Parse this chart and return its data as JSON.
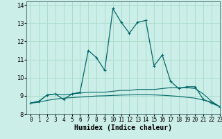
{
  "title": "",
  "xlabel": "Humidex (Indice chaleur)",
  "ylabel": "",
  "background_color": "#cceee8",
  "grid_color": "#aaddcc",
  "line_color": "#006666",
  "xlim": [
    -0.5,
    23
  ],
  "ylim": [
    8,
    14.2
  ],
  "xticks": [
    0,
    1,
    2,
    3,
    4,
    5,
    6,
    7,
    8,
    9,
    10,
    11,
    12,
    13,
    14,
    15,
    16,
    17,
    18,
    19,
    20,
    21,
    22,
    23
  ],
  "yticks": [
    8,
    9,
    10,
    11,
    12,
    13,
    14
  ],
  "series_main": {
    "x": [
      0,
      1,
      2,
      3,
      4,
      5,
      6,
      7,
      8,
      9,
      10,
      11,
      12,
      13,
      14,
      15,
      16,
      17,
      18,
      19,
      20,
      21,
      22,
      23
    ],
    "y": [
      8.6,
      8.7,
      9.05,
      9.1,
      8.8,
      9.1,
      9.2,
      11.5,
      11.1,
      10.4,
      13.8,
      13.05,
      12.45,
      13.05,
      13.15,
      10.65,
      11.25,
      9.8,
      9.4,
      9.5,
      9.5,
      8.8,
      8.6,
      8.4
    ]
  },
  "series_flat1": {
    "x": [
      0,
      1,
      2,
      3,
      4,
      5,
      6,
      7,
      8,
      9,
      10,
      11,
      12,
      13,
      14,
      15,
      16,
      17,
      18,
      19,
      20,
      21,
      22,
      23
    ],
    "y": [
      8.6,
      8.7,
      9.05,
      9.1,
      9.05,
      9.1,
      9.15,
      9.2,
      9.2,
      9.2,
      9.25,
      9.3,
      9.3,
      9.35,
      9.35,
      9.35,
      9.4,
      9.45,
      9.45,
      9.45,
      9.4,
      9.1,
      8.7,
      8.4
    ]
  },
  "series_flat2": {
    "x": [
      0,
      1,
      2,
      3,
      4,
      5,
      6,
      7,
      8,
      9,
      10,
      11,
      12,
      13,
      14,
      15,
      16,
      17,
      18,
      19,
      20,
      21,
      22,
      23
    ],
    "y": [
      8.6,
      8.65,
      8.75,
      8.82,
      8.87,
      8.9,
      8.93,
      8.96,
      8.99,
      9.0,
      9.02,
      9.04,
      9.05,
      9.06,
      9.06,
      9.05,
      9.03,
      9.0,
      8.97,
      8.92,
      8.87,
      8.77,
      8.65,
      8.4
    ]
  }
}
